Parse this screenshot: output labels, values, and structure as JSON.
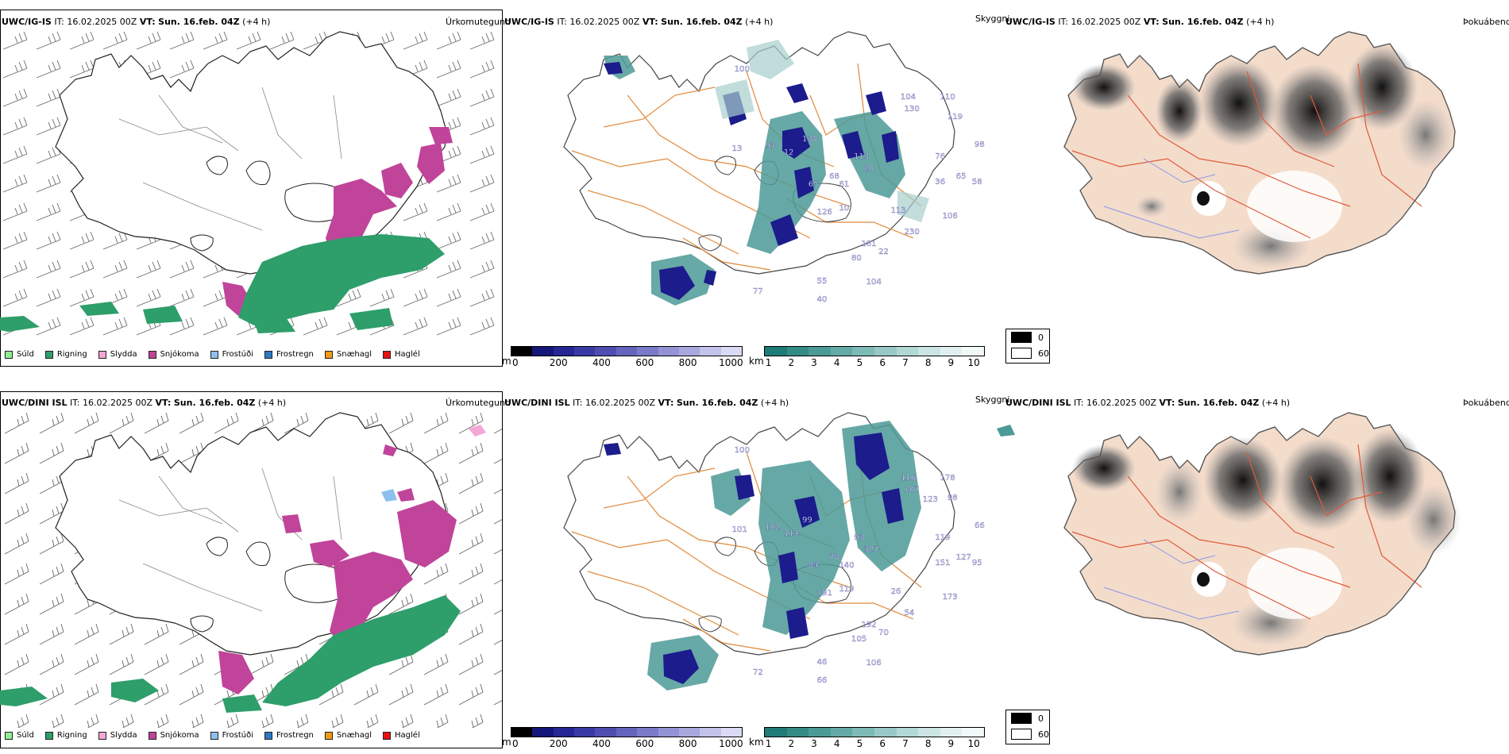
{
  "rows": [
    {
      "model": "UWC/IG-IS",
      "init_label": "IT:",
      "init_time": "16.02.2025 00Z",
      "valid_label": "VT:",
      "valid_time": "Sun. 16.feb. 04Z",
      "lead": "(+4 h)"
    },
    {
      "model": "UWC/DINI ISL",
      "init_label": "IT:",
      "init_time": "16.02.2025 00Z",
      "valid_label": "VT:",
      "valid_time": "Sun. 16.feb. 04Z",
      "lead": "(+4 h)"
    }
  ],
  "panels": {
    "precip": {
      "name": "Úrkomutegund"
    },
    "visibility": {
      "name": "Skyggni"
    },
    "fog": {
      "name": "Þokuábendi"
    }
  },
  "precip_legend": [
    {
      "label": "Súld",
      "color": "#90ee90"
    },
    {
      "label": "Rigning",
      "color": "#2e9e6a"
    },
    {
      "label": "Slydda",
      "color": "#f4a6d7"
    },
    {
      "label": "Snjókoma",
      "color": "#c0449a"
    },
    {
      "label": "Frostúði",
      "color": "#8ec0ee"
    },
    {
      "label": "Frostregn",
      "color": "#2f78c4"
    },
    {
      "label": "Snæhagl",
      "color": "#f09a18"
    },
    {
      "label": "Haglél",
      "color": "#e81010"
    }
  ],
  "vis_m_bar": {
    "unit": "m",
    "ticks": [
      "0",
      "200",
      "400",
      "600",
      "800",
      "1000"
    ],
    "colors": [
      "#000000",
      "#16167a",
      "#262694",
      "#3a3aa4",
      "#4e4eb0",
      "#6464bc",
      "#7a7ac8",
      "#9292d4",
      "#a8a8de",
      "#c2c2ea",
      "#dadaf4"
    ]
  },
  "vis_km_bar": {
    "unit": "km",
    "ticks": [
      "1",
      "2",
      "3",
      "4",
      "5",
      "6",
      "7",
      "8",
      "9",
      "10"
    ],
    "colors": [
      "#1f7b76",
      "#348b86",
      "#4c9a96",
      "#64aaa6",
      "#7ebab6",
      "#98c9c6",
      "#b2d8d6",
      "#cae5e3",
      "#e0f0ef",
      "#f2f9f9"
    ]
  },
  "fog_legend": {
    "high": "0",
    "low": "60"
  },
  "vis_labels_top": [
    "100",
    "93",
    "12",
    "13",
    "65",
    "68",
    "138",
    "113",
    "20",
    "61",
    "126",
    "10",
    "181",
    "80",
    "113",
    "230",
    "22",
    "104",
    "130",
    "110",
    "119",
    "98",
    "55",
    "40",
    "77",
    "104",
    "36",
    "65",
    "58",
    "106",
    "76"
  ],
  "vis_labels_bottom": [
    "100",
    "102",
    "114",
    "101",
    "84",
    "78",
    "99",
    "93",
    "327",
    "140",
    "191",
    "119",
    "192",
    "105",
    "26",
    "54",
    "70",
    "116",
    "107",
    "178",
    "98",
    "66",
    "46",
    "66",
    "72",
    "106",
    "151",
    "127",
    "95",
    "173",
    "119",
    "123"
  ]
}
